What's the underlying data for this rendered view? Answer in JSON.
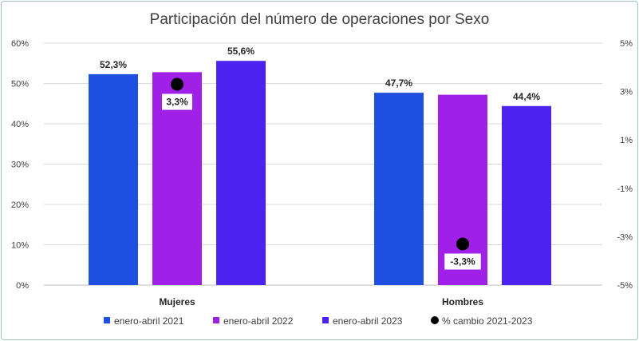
{
  "chart_data": {
    "type": "bar",
    "title": "Participación del número de operaciones por Sexo",
    "categories": [
      "Mujeres",
      "Hombres"
    ],
    "series": [
      {
        "name": "enero-abril 2021",
        "values": [
          52.3,
          47.7
        ],
        "labels": [
          "52,3%",
          "47,7%"
        ],
        "color": "#1f4fe0"
      },
      {
        "name": "enero-abril 2022",
        "values": [
          52.8,
          47.2
        ],
        "labels": [
          "",
          ""
        ],
        "color": "#a020e8"
      },
      {
        "name": "enero-abril 2023",
        "values": [
          55.6,
          44.4
        ],
        "labels": [
          "55,6%",
          "44,4%"
        ],
        "color": "#4b22f0"
      }
    ],
    "secondary_series": {
      "name": "% cambio 2021-2023",
      "type": "scatter",
      "values": [
        3.3,
        -3.3
      ],
      "labels": [
        "3,3%",
        "-3,3%"
      ],
      "color": "#000000"
    },
    "ylim": [
      0,
      60
    ],
    "y_ticks": [
      0,
      10,
      20,
      30,
      40,
      50,
      60
    ],
    "y_tick_labels": [
      "0%",
      "10%",
      "20%",
      "30%",
      "40%",
      "50%",
      "60%"
    ],
    "y2lim": [
      -5,
      5
    ],
    "y2_ticks": [
      -5,
      -3,
      -1,
      1,
      3,
      5
    ],
    "y2_tick_labels": [
      "-5%",
      "-3%",
      "-1%",
      "1%",
      "3%",
      "5%"
    ],
    "grid": true,
    "legend_position": "bottom"
  }
}
